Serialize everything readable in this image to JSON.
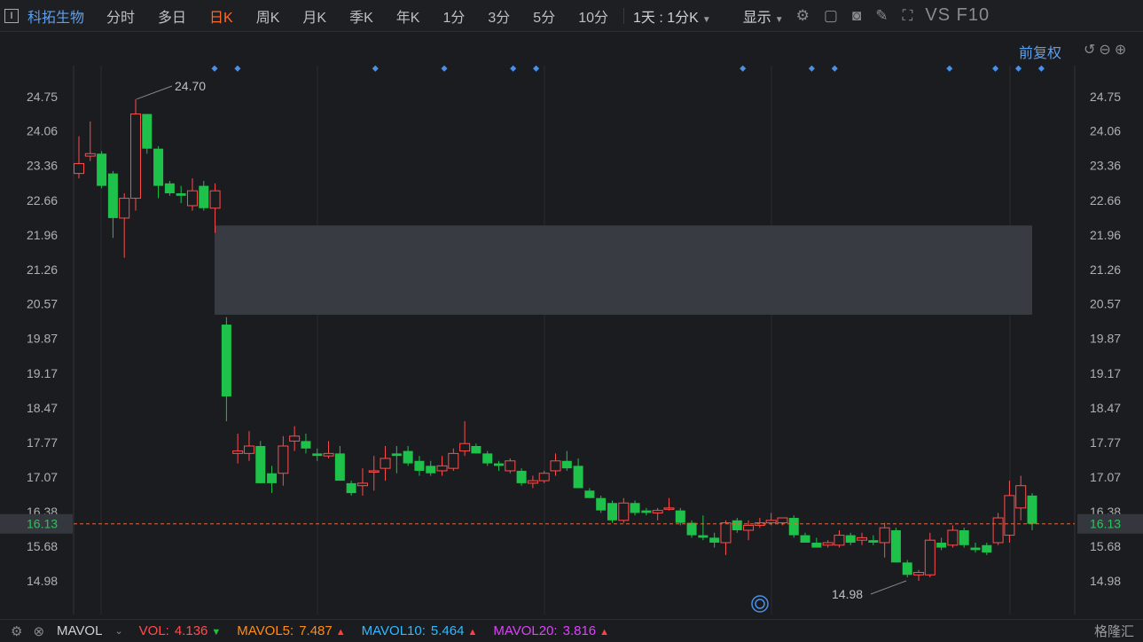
{
  "toolbar": {
    "ticker_glyph": "I",
    "stock_name": "科拓生物",
    "periods": [
      "分时",
      "多日",
      "日K",
      "周K",
      "月K",
      "季K",
      "年K",
      "1分",
      "3分",
      "5分",
      "10分"
    ],
    "active_period": "日K",
    "custom_period": "1天 : 1分K",
    "display_label": "显示",
    "vs_f10": "VS F10",
    "icons": [
      "gear-icon",
      "rectangle-icon",
      "camera-icon",
      "pen-icon",
      "fullscreen-icon"
    ]
  },
  "chart_header": {
    "adjust_label": "前复权",
    "icons": [
      "undo-icon",
      "zoom-out-icon",
      "zoom-in-icon"
    ]
  },
  "chart_data": {
    "type": "candlestick",
    "title": "",
    "current_price": "16.13",
    "y_ticks": [
      "24.75",
      "24.06",
      "23.36",
      "22.66",
      "21.96",
      "21.26",
      "20.57",
      "19.87",
      "19.17",
      "18.47",
      "17.77",
      "17.07",
      "16.38",
      "15.68",
      "14.98"
    ],
    "ylim": [
      14.6,
      25.3
    ],
    "annotations": {
      "high_label": "24.70",
      "low_label": "14.98"
    },
    "gap_zone": {
      "low": 20.35,
      "high": 22.15
    },
    "series": [
      {
        "o": 23.2,
        "h": 23.95,
        "l": 23.1,
        "c": 23.4
      },
      {
        "o": 23.55,
        "h": 24.25,
        "l": 23.45,
        "c": 23.6
      },
      {
        "o": 23.6,
        "h": 23.65,
        "l": 22.9,
        "c": 22.95
      },
      {
        "o": 23.2,
        "h": 23.25,
        "l": 21.9,
        "c": 22.3
      },
      {
        "o": 22.3,
        "h": 22.8,
        "l": 21.5,
        "c": 22.7
      },
      {
        "o": 22.7,
        "h": 24.7,
        "l": 22.45,
        "c": 24.4
      },
      {
        "o": 24.4,
        "h": 24.4,
        "l": 23.6,
        "c": 23.7
      },
      {
        "o": 23.7,
        "h": 23.75,
        "l": 22.7,
        "c": 22.95
      },
      {
        "o": 23.0,
        "h": 23.05,
        "l": 22.75,
        "c": 22.8
      },
      {
        "o": 22.8,
        "h": 22.95,
        "l": 22.6,
        "c": 22.75
      },
      {
        "o": 22.55,
        "h": 23.1,
        "l": 22.45,
        "c": 22.85
      },
      {
        "o": 22.95,
        "h": 23.05,
        "l": 22.45,
        "c": 22.5
      },
      {
        "o": 22.5,
        "h": 23.0,
        "l": 22.0,
        "c": 22.85
      },
      {
        "o": 20.15,
        "h": 20.3,
        "l": 18.2,
        "c": 18.7
      },
      {
        "o": 17.55,
        "h": 17.95,
        "l": 17.35,
        "c": 17.6
      },
      {
        "o": 17.55,
        "h": 18.0,
        "l": 17.4,
        "c": 17.7
      },
      {
        "o": 17.7,
        "h": 17.8,
        "l": 16.95,
        "c": 16.95
      },
      {
        "o": 17.15,
        "h": 17.3,
        "l": 16.75,
        "c": 16.95
      },
      {
        "o": 17.15,
        "h": 17.9,
        "l": 16.9,
        "c": 17.7
      },
      {
        "o": 17.8,
        "h": 18.1,
        "l": 17.6,
        "c": 17.9
      },
      {
        "o": 17.8,
        "h": 17.95,
        "l": 17.55,
        "c": 17.65
      },
      {
        "o": 17.55,
        "h": 17.65,
        "l": 17.4,
        "c": 17.5
      },
      {
        "o": 17.5,
        "h": 17.8,
        "l": 17.45,
        "c": 17.55
      },
      {
        "o": 17.55,
        "h": 17.7,
        "l": 17.0,
        "c": 17.0
      },
      {
        "o": 16.95,
        "h": 17.0,
        "l": 16.7,
        "c": 16.75
      },
      {
        "o": 16.9,
        "h": 17.25,
        "l": 16.7,
        "c": 16.95
      },
      {
        "o": 17.2,
        "h": 17.5,
        "l": 16.8,
        "c": 17.2
      },
      {
        "o": 17.25,
        "h": 17.7,
        "l": 17.0,
        "c": 17.45
      },
      {
        "o": 17.55,
        "h": 17.7,
        "l": 17.15,
        "c": 17.5
      },
      {
        "o": 17.6,
        "h": 17.7,
        "l": 17.3,
        "c": 17.35
      },
      {
        "o": 17.4,
        "h": 17.5,
        "l": 17.1,
        "c": 17.2
      },
      {
        "o": 17.3,
        "h": 17.4,
        "l": 17.1,
        "c": 17.15
      },
      {
        "o": 17.2,
        "h": 17.5,
        "l": 17.1,
        "c": 17.3
      },
      {
        "o": 17.25,
        "h": 17.65,
        "l": 17.2,
        "c": 17.55
      },
      {
        "o": 17.6,
        "h": 18.2,
        "l": 17.5,
        "c": 17.75
      },
      {
        "o": 17.7,
        "h": 17.75,
        "l": 17.55,
        "c": 17.55
      },
      {
        "o": 17.55,
        "h": 17.6,
        "l": 17.3,
        "c": 17.35
      },
      {
        "o": 17.35,
        "h": 17.4,
        "l": 17.2,
        "c": 17.3
      },
      {
        "o": 17.2,
        "h": 17.45,
        "l": 17.15,
        "c": 17.4
      },
      {
        "o": 17.2,
        "h": 17.25,
        "l": 16.9,
        "c": 16.95
      },
      {
        "o": 16.95,
        "h": 17.1,
        "l": 16.85,
        "c": 17.0
      },
      {
        "o": 17.0,
        "h": 17.2,
        "l": 16.95,
        "c": 17.15
      },
      {
        "o": 17.2,
        "h": 17.55,
        "l": 17.1,
        "c": 17.4
      },
      {
        "o": 17.4,
        "h": 17.6,
        "l": 17.2,
        "c": 17.25
      },
      {
        "o": 17.3,
        "h": 17.45,
        "l": 16.85,
        "c": 16.85
      },
      {
        "o": 16.8,
        "h": 16.85,
        "l": 16.65,
        "c": 16.65
      },
      {
        "o": 16.65,
        "h": 16.7,
        "l": 16.35,
        "c": 16.4
      },
      {
        "o": 16.55,
        "h": 16.6,
        "l": 16.15,
        "c": 16.2
      },
      {
        "o": 16.2,
        "h": 16.65,
        "l": 16.15,
        "c": 16.55
      },
      {
        "o": 16.55,
        "h": 16.6,
        "l": 16.3,
        "c": 16.35
      },
      {
        "o": 16.4,
        "h": 16.45,
        "l": 16.3,
        "c": 16.35
      },
      {
        "o": 16.35,
        "h": 16.45,
        "l": 16.2,
        "c": 16.4
      },
      {
        "o": 16.45,
        "h": 16.65,
        "l": 16.4,
        "c": 16.45
      },
      {
        "o": 16.4,
        "h": 16.45,
        "l": 16.1,
        "c": 16.15
      },
      {
        "o": 16.15,
        "h": 16.2,
        "l": 15.85,
        "c": 15.9
      },
      {
        "o": 15.9,
        "h": 16.3,
        "l": 15.8,
        "c": 15.85
      },
      {
        "o": 15.85,
        "h": 15.95,
        "l": 15.65,
        "c": 15.75
      },
      {
        "o": 15.75,
        "h": 16.2,
        "l": 15.5,
        "c": 16.15
      },
      {
        "o": 16.2,
        "h": 16.25,
        "l": 15.95,
        "c": 16.0
      },
      {
        "o": 16.0,
        "h": 16.2,
        "l": 15.8,
        "c": 16.1
      },
      {
        "o": 16.1,
        "h": 16.25,
        "l": 16.05,
        "c": 16.15
      },
      {
        "o": 16.15,
        "h": 16.35,
        "l": 16.1,
        "c": 16.2
      },
      {
        "o": 16.15,
        "h": 16.25,
        "l": 16.1,
        "c": 16.25
      },
      {
        "o": 16.25,
        "h": 16.3,
        "l": 15.85,
        "c": 15.9
      },
      {
        "o": 15.9,
        "h": 15.95,
        "l": 15.75,
        "c": 15.75
      },
      {
        "o": 15.75,
        "h": 15.85,
        "l": 15.65,
        "c": 15.65
      },
      {
        "o": 15.7,
        "h": 15.8,
        "l": 15.65,
        "c": 15.75
      },
      {
        "o": 15.7,
        "h": 16.0,
        "l": 15.65,
        "c": 15.9
      },
      {
        "o": 15.9,
        "h": 15.95,
        "l": 15.7,
        "c": 15.75
      },
      {
        "o": 15.8,
        "h": 15.95,
        "l": 15.7,
        "c": 15.85
      },
      {
        "o": 15.8,
        "h": 15.9,
        "l": 15.7,
        "c": 15.75
      },
      {
        "o": 15.75,
        "h": 16.15,
        "l": 15.45,
        "c": 16.05
      },
      {
        "o": 16.0,
        "h": 16.05,
        "l": 15.35,
        "c": 15.35
      },
      {
        "o": 15.35,
        "h": 15.4,
        "l": 15.05,
        "c": 15.1
      },
      {
        "o": 15.1,
        "h": 15.2,
        "l": 14.98,
        "c": 15.15
      },
      {
        "o": 15.1,
        "h": 15.95,
        "l": 15.05,
        "c": 15.8
      },
      {
        "o": 15.75,
        "h": 15.85,
        "l": 15.6,
        "c": 15.65
      },
      {
        "o": 15.7,
        "h": 16.1,
        "l": 15.65,
        "c": 16.0
      },
      {
        "o": 16.0,
        "h": 16.05,
        "l": 15.65,
        "c": 15.7
      },
      {
        "o": 15.65,
        "h": 15.75,
        "l": 15.55,
        "c": 15.6
      },
      {
        "o": 15.7,
        "h": 15.75,
        "l": 15.5,
        "c": 15.55
      },
      {
        "o": 15.75,
        "h": 16.35,
        "l": 15.7,
        "c": 16.25
      },
      {
        "o": 15.9,
        "h": 17.0,
        "l": 15.75,
        "c": 16.7
      },
      {
        "o": 16.45,
        "h": 17.1,
        "l": 16.2,
        "c": 16.9
      },
      {
        "o": 16.7,
        "h": 16.75,
        "l": 16.0,
        "c": 16.13
      }
    ]
  },
  "mini_markers": [
    0,
    1,
    7,
    10,
    13,
    14,
    23,
    26,
    27,
    32,
    34,
    35,
    36
  ],
  "indicator": {
    "name": "MAVOL",
    "items": [
      {
        "label": "VOL:",
        "value": "4.136",
        "dir": "down",
        "color": "#ff4d4d"
      },
      {
        "label": "MAVOL5:",
        "value": "7.487",
        "dir": "up",
        "color": "#ff8c1a"
      },
      {
        "label": "MAVOL10:",
        "value": "5.464",
        "dir": "up",
        "color": "#33b8ff"
      },
      {
        "label": "MAVOL20:",
        "value": "3.816",
        "dir": "up",
        "color": "#e040ff"
      }
    ]
  },
  "brand": "格隆汇",
  "colors": {
    "up": "#ff4d4d",
    "down": "#1ec24a",
    "accent": "#5aa0f0",
    "active": "#ff6a2a"
  }
}
